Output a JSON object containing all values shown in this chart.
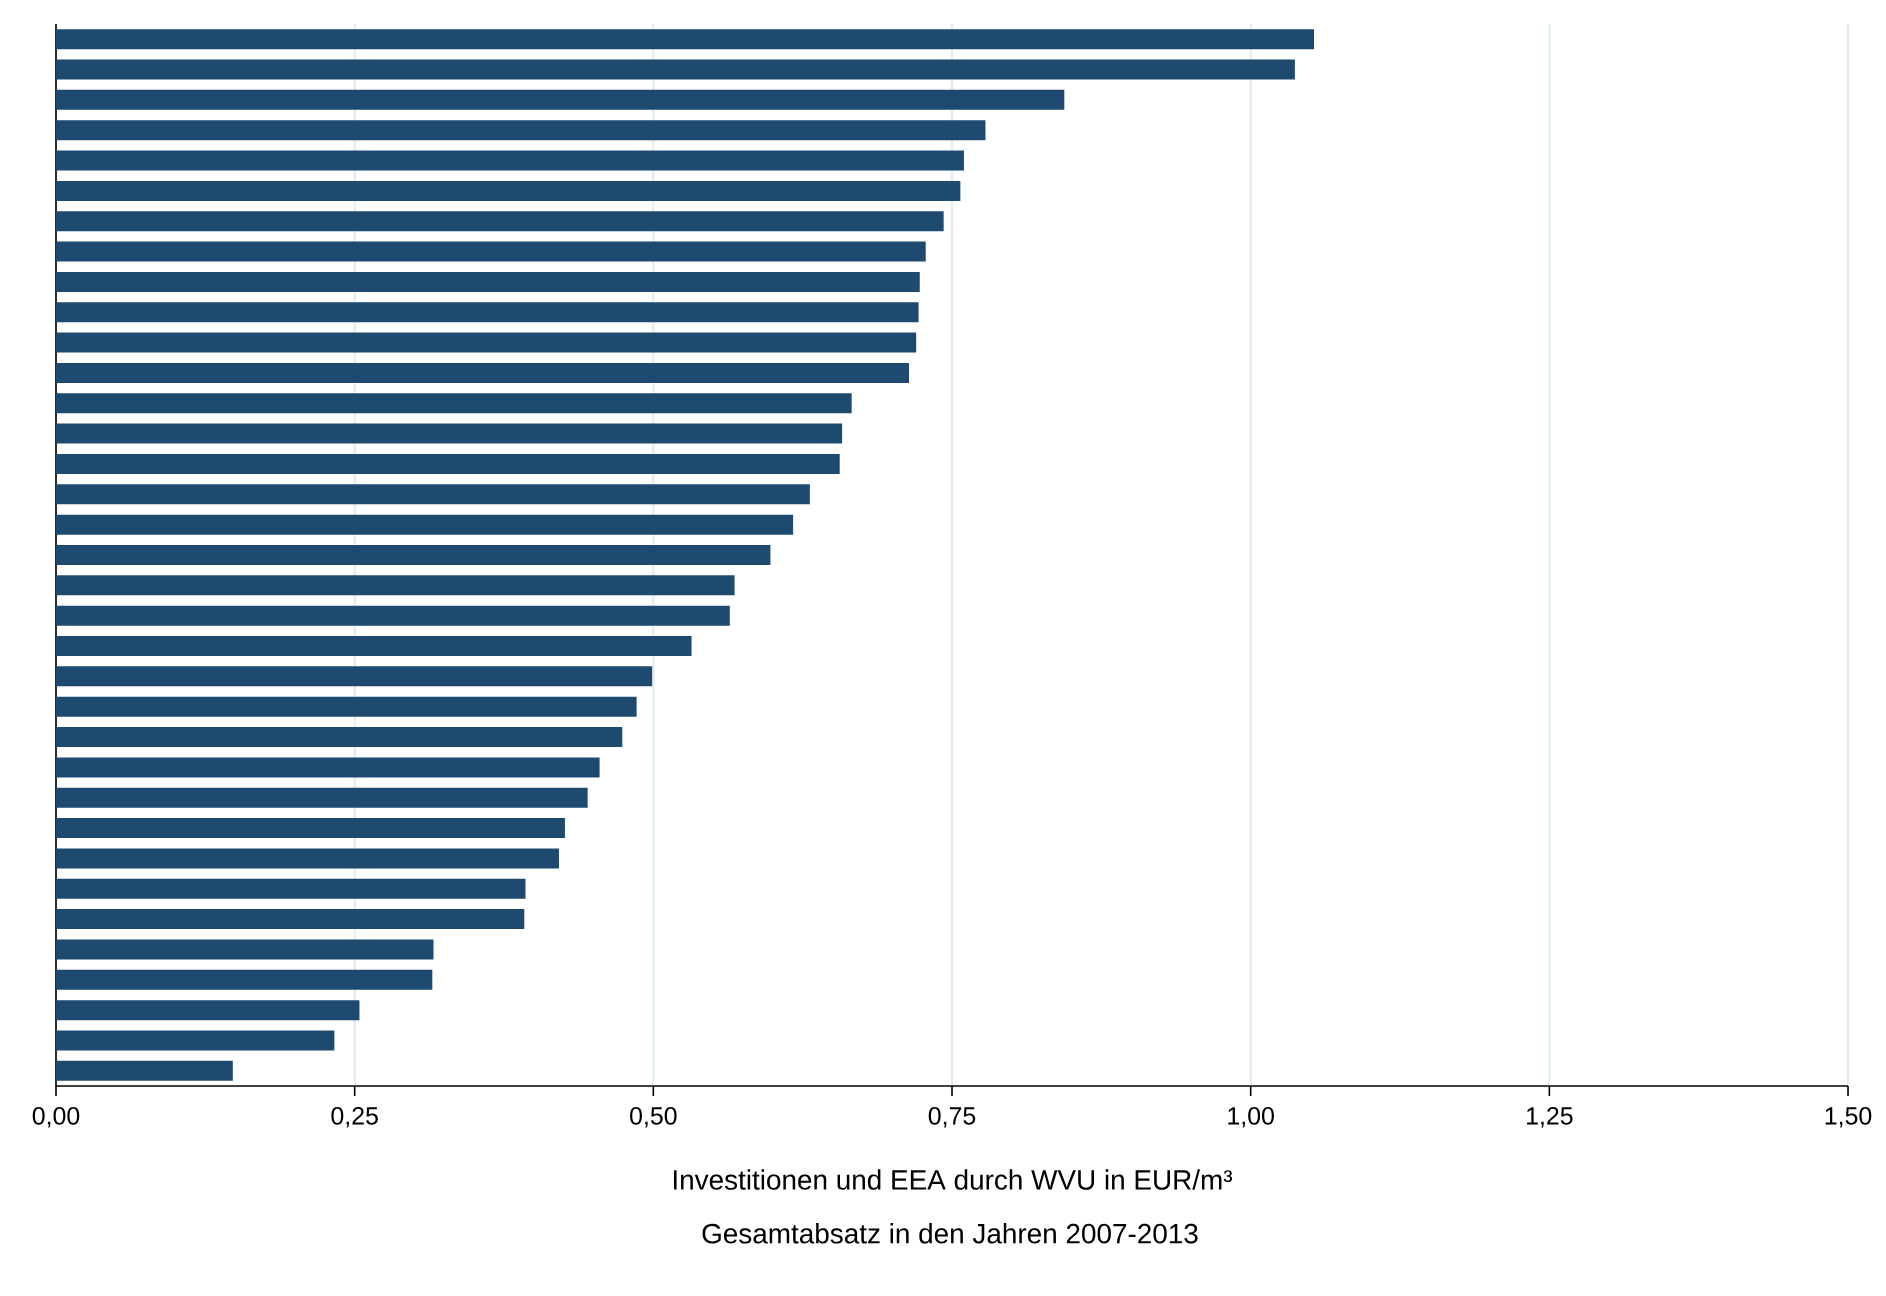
{
  "chart_data": {
    "type": "bar",
    "orientation": "horizontal",
    "xlabel": "Investitionen und EEA durch WVU in EUR/m³",
    "annotations": [
      "Gesamtabsatz in den Jahren 2007-2013"
    ],
    "categories": [
      null,
      null,
      null,
      null,
      null,
      null,
      null,
      null,
      null,
      null,
      null,
      null,
      null,
      null,
      null,
      null,
      null,
      null,
      null,
      null,
      null,
      null,
      null,
      null,
      null,
      null,
      null,
      null,
      null,
      null,
      null,
      null,
      null,
      null,
      null
    ],
    "values": [
      1.053,
      1.037,
      0.844,
      0.778,
      0.76,
      0.757,
      0.743,
      0.728,
      0.723,
      0.722,
      0.72,
      0.714,
      0.666,
      0.658,
      0.656,
      0.631,
      0.617,
      0.598,
      0.568,
      0.564,
      0.532,
      0.499,
      0.486,
      0.474,
      0.455,
      0.445,
      0.426,
      0.421,
      0.393,
      0.392,
      0.316,
      0.315,
      0.254,
      0.233,
      0.148
    ],
    "color": "#1f4a70",
    "xlim": [
      0,
      1.5
    ],
    "xticks": [
      {
        "value": 0,
        "label": "0,00"
      },
      {
        "value": 0.25,
        "label": "0,25"
      },
      {
        "value": 0.5,
        "label": "0,50"
      },
      {
        "value": 0.75,
        "label": "0,75"
      },
      {
        "value": 1,
        "label": "1,00"
      },
      {
        "value": 1.25,
        "label": "1,25"
      },
      {
        "value": 1.5,
        "label": "1,50"
      }
    ],
    "grid": "x"
  }
}
